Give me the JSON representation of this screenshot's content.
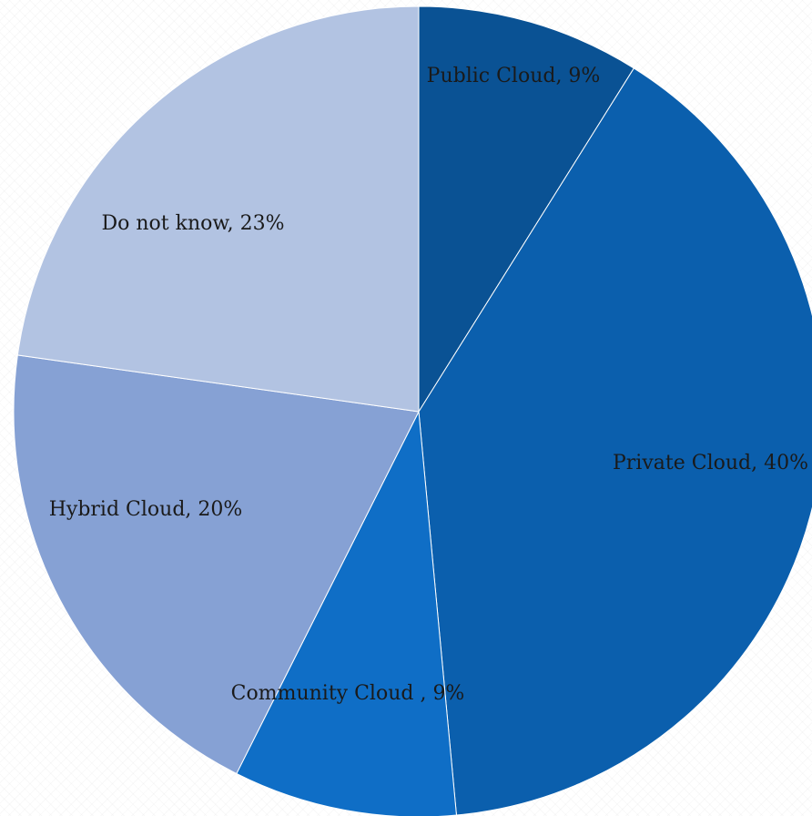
{
  "chart_data": {
    "type": "pie",
    "title": "",
    "slices": [
      {
        "label": "Public Cloud",
        "value": 9,
        "display": "Public Cloud, 9%",
        "color": "#0a5294"
      },
      {
        "label": "Private Cloud",
        "value": 40,
        "display": "Private Cloud, 40%",
        "color": "#0b5fad"
      },
      {
        "label": "Community Cloud ",
        "value": 9,
        "display": "Community Cloud , 9%",
        "color": "#0f6ec6"
      },
      {
        "label": "Hybrid Cloud",
        "value": 20,
        "display": "Hybrid Cloud, 20%",
        "color": "#86a1d4"
      },
      {
        "label": "Do not know",
        "value": 23,
        "display": "Do not know, 23%",
        "color": "#b2c3e2"
      }
    ],
    "start_angle": "12 o'clock",
    "direction": "clockwise",
    "legend": "none",
    "data_labels": "on slices"
  }
}
